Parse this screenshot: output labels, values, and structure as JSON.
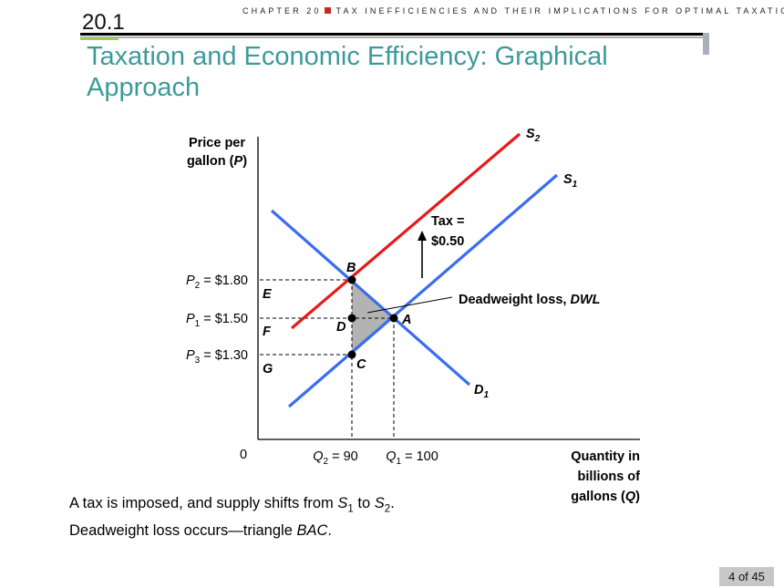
{
  "header": {
    "chapter_left": "CHAPTER 20",
    "chapter_right": "TAX INEFFICIENCIES AND THEIR IMPLICATIONS FOR OPTIMAL TAXATION",
    "section_number": "20.1",
    "title": "Taxation and Economic Efficiency: Graphical Approach"
  },
  "diagram": {
    "y_axis_label_line1": "Price per",
    "y_axis_label_line2": "gallon (",
    "y_axis_label_var": "P",
    "y_axis_label_close": ")",
    "x_axis_label_line1": "Quantity in",
    "x_axis_label_line2": "billions of",
    "x_axis_label_line3": "gallons (",
    "x_axis_label_var": "Q",
    "x_axis_label_close": ")",
    "origin": "0",
    "p2_label": "P",
    "p2_sub": "2",
    "p2_value": " = $1.80",
    "p1_label": "P",
    "p1_sub": "1",
    "p1_value": " = $1.50",
    "p3_label": "P",
    "p3_sub": "3",
    "p3_value": " = $1.30",
    "q2_label": "Q",
    "q2_sub": "2",
    "q2_value": " = 90",
    "q1_label": "Q",
    "q1_sub": "1",
    "q1_value": " = 100",
    "s2_label": "S",
    "s2_sub": "2",
    "s1_label": "S",
    "s1_sub": "1",
    "d1_label": "D",
    "d1_sub": "1",
    "tax_line1": "Tax =",
    "tax_line2": "$0.50",
    "dwl_label": "Deadweight loss, ",
    "dwl_abbrev": "DWL",
    "point_b": "B",
    "point_a": "A",
    "point_c": "C",
    "point_d": "D",
    "point_e": "E",
    "point_f": "F",
    "point_g": "G",
    "colors": {
      "supply_original": "#3a6df0",
      "supply_taxed": "#e8191a",
      "demand": "#3a6df0",
      "dwl_fill": "#b3b3b3"
    }
  },
  "caption": {
    "line1_a": "A tax is imposed, and supply shifts from ",
    "line1_s1": "S",
    "line1_s1_sub": "1",
    "line1_to": " to ",
    "line1_s2": "S",
    "line1_s2_sub": "2",
    "line1_end": ".",
    "line2_a": "Deadweight loss occurs—triangle ",
    "line2_b": "BAC",
    "line2_c": "."
  },
  "footer": {
    "page": "4 of 45"
  }
}
